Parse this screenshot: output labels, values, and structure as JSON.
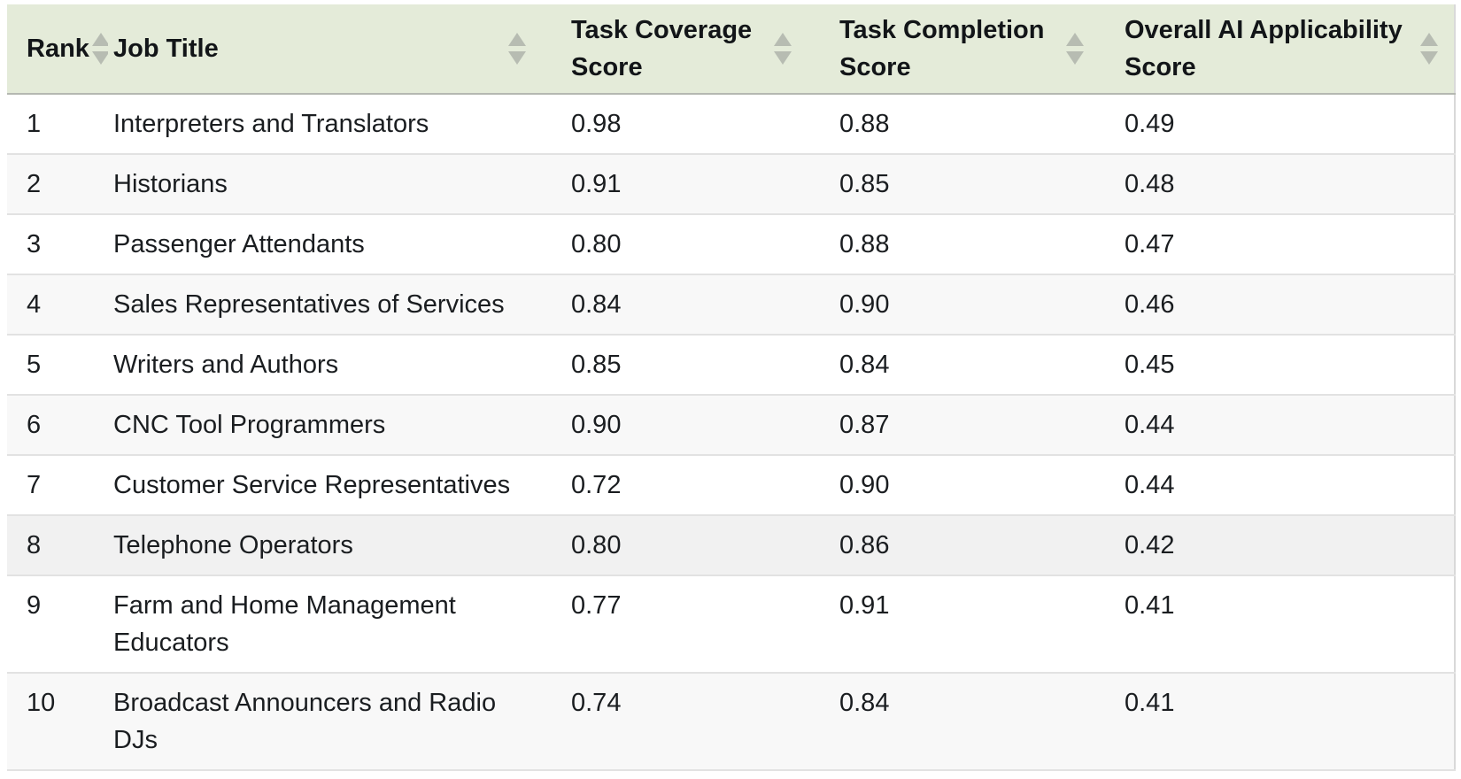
{
  "table": {
    "title": "AI applicability job ranking table",
    "header": {
      "columns": [
        {
          "id": "rank",
          "label": "Rank",
          "sort_icon": "sort-arrows"
        },
        {
          "id": "job_title",
          "label": "Job Title",
          "sort_icon": "sort-arrows"
        },
        {
          "id": "task_coverage",
          "label": "Task Coverage Score",
          "sort_icon": "sort-arrows"
        },
        {
          "id": "task_completion",
          "label": "Task Completion Score",
          "sort_icon": "sort-arrows"
        },
        {
          "id": "overall_ai_applicability",
          "label": "Overall AI Applicability Score",
          "sort_icon": "sort-arrows"
        }
      ]
    },
    "rows": [
      {
        "rank": "1",
        "job_title": "Interpreters and Translators",
        "task_coverage": "0.98",
        "task_completion": "0.88",
        "overall_ai_applicability": "0.49",
        "highlighted": false
      },
      {
        "rank": "2",
        "job_title": "Historians",
        "task_coverage": "0.91",
        "task_completion": "0.85",
        "overall_ai_applicability": "0.48",
        "highlighted": false
      },
      {
        "rank": "3",
        "job_title": "Passenger Attendants",
        "task_coverage": "0.80",
        "task_completion": "0.88",
        "overall_ai_applicability": "0.47",
        "highlighted": false
      },
      {
        "rank": "4",
        "job_title": "Sales Representatives of Services",
        "task_coverage": "0.84",
        "task_completion": "0.90",
        "overall_ai_applicability": "0.46",
        "highlighted": false
      },
      {
        "rank": "5",
        "job_title": "Writers and Authors",
        "task_coverage": "0.85",
        "task_completion": "0.84",
        "overall_ai_applicability": "0.45",
        "highlighted": false
      },
      {
        "rank": "6",
        "job_title": "CNC Tool Programmers",
        "task_coverage": "0.90",
        "task_completion": "0.87",
        "overall_ai_applicability": "0.44",
        "highlighted": false
      },
      {
        "rank": "7",
        "job_title": "Customer Service Representatives",
        "task_coverage": "0.72",
        "task_completion": "0.90",
        "overall_ai_applicability": "0.44",
        "highlighted": false
      },
      {
        "rank": "8",
        "job_title": "Telephone Operators",
        "task_coverage": "0.80",
        "task_completion": "0.86",
        "overall_ai_applicability": "0.42",
        "highlighted": true
      },
      {
        "rank": "9",
        "job_title": "Farm and Home Management Educators",
        "task_coverage": "0.77",
        "task_completion": "0.91",
        "overall_ai_applicability": "0.41",
        "highlighted": false
      },
      {
        "rank": "10",
        "job_title": "Broadcast Announcers and Radio DJs",
        "task_coverage": "0.74",
        "task_completion": "0.84",
        "overall_ai_applicability": "0.41",
        "highlighted": false
      }
    ],
    "colors": {
      "header_background": "#e4ebd9",
      "header_text": "#121518",
      "sort_arrow": "#b7bcb2",
      "row_even_background": "#f8f8f8",
      "row_highlighted_background": "#f1f1f1",
      "row_divider": "#e2e2e2",
      "header_divider": "#b5b8b1",
      "table_right_border": "#d9d9d9",
      "body_text": "#1a1d20"
    }
  }
}
